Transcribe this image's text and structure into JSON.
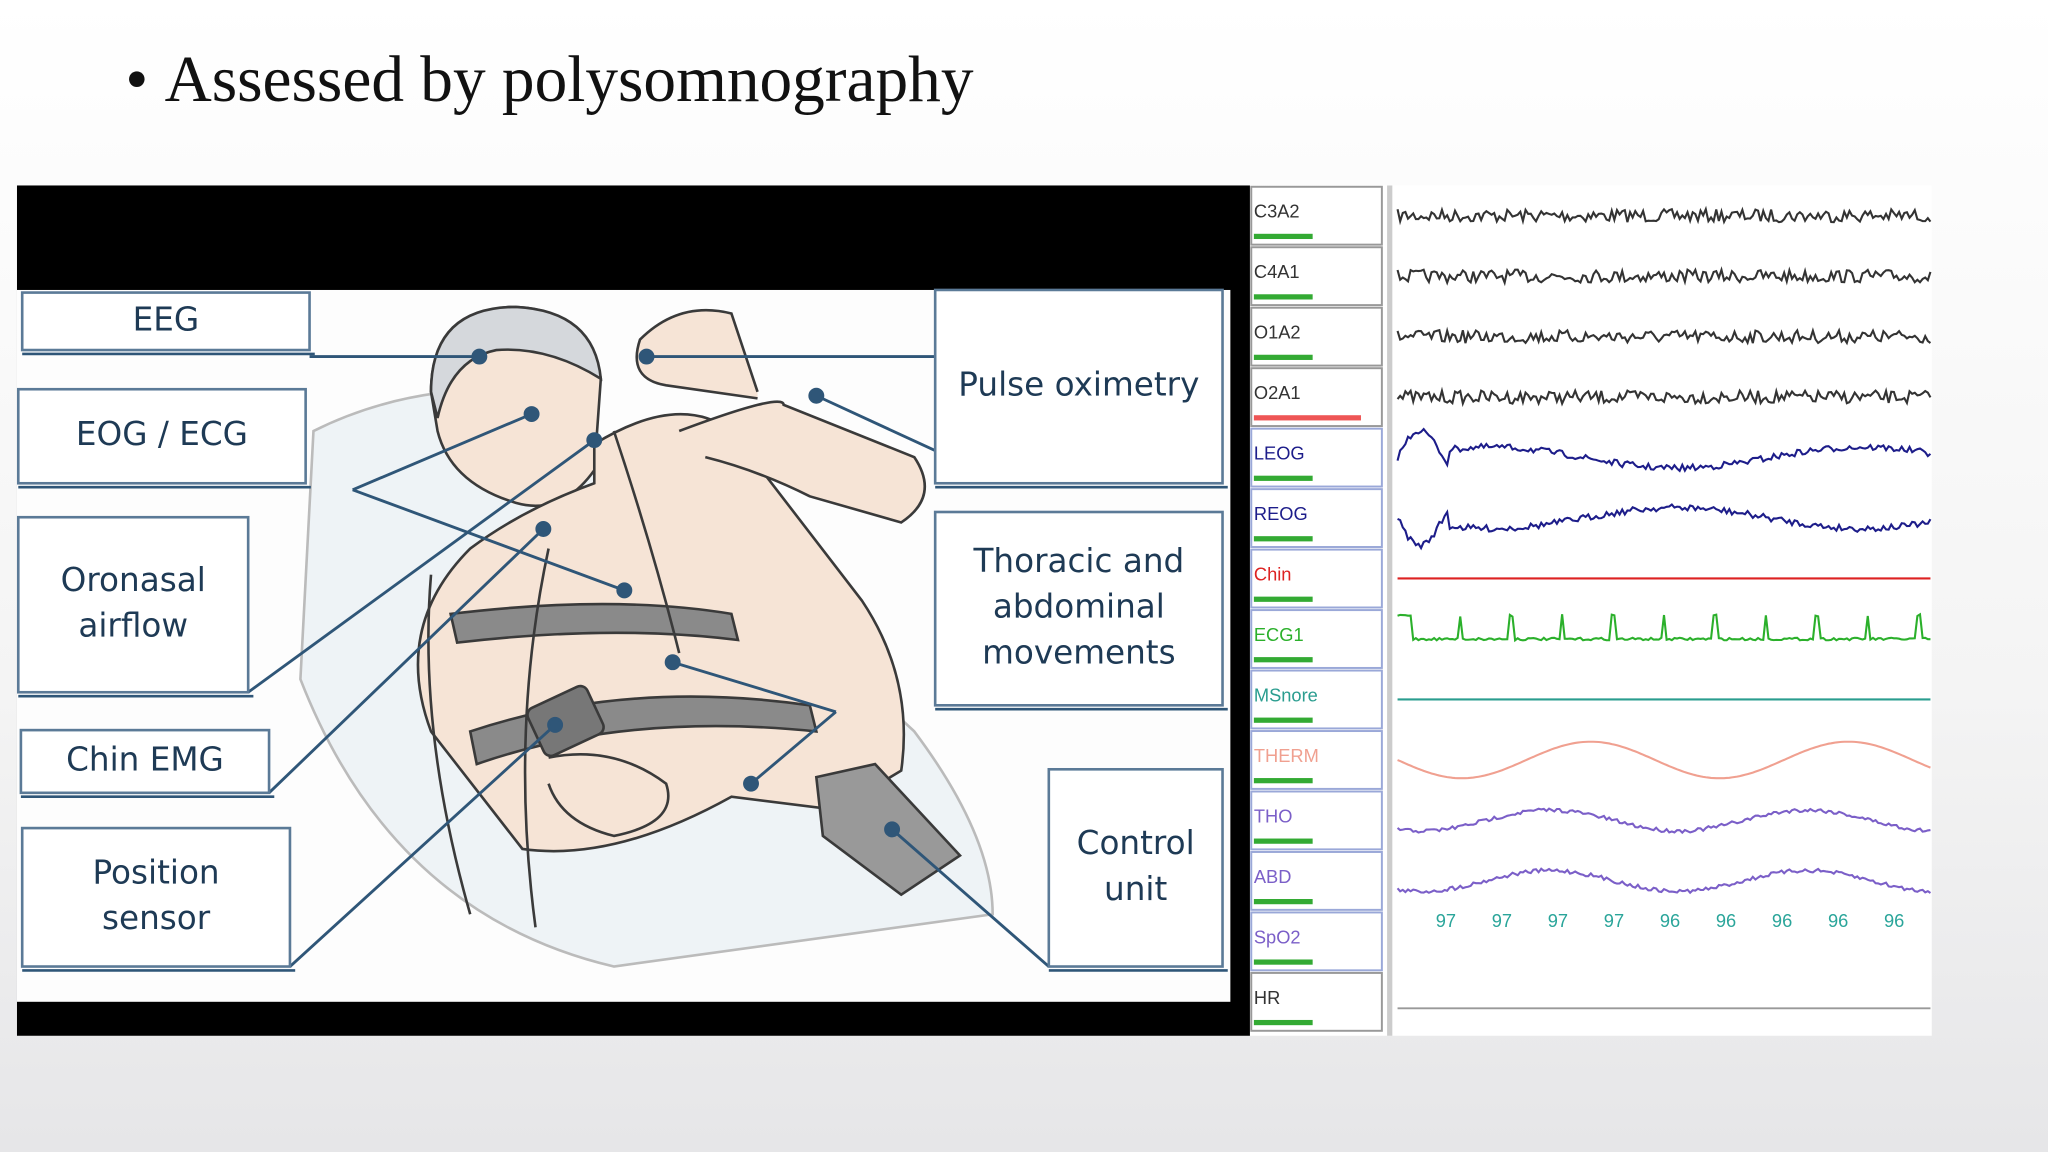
{
  "title": "Assessed by polysomnography",
  "illustration": {
    "labels": [
      {
        "lines": [
          "EEG"
        ]
      },
      {
        "lines": [
          "EOG / ECG"
        ]
      },
      {
        "lines": [
          "Oronasal",
          "airflow"
        ]
      },
      {
        "lines": [
          "Chin EMG"
        ]
      },
      {
        "lines": [
          "Position",
          "sensor"
        ]
      },
      {
        "lines": [
          "Pulse oximetry"
        ]
      },
      {
        "lines": [
          "Thoracic and",
          "abdominal",
          "movements"
        ]
      },
      {
        "lines": [
          "Control",
          "unit"
        ]
      }
    ]
  },
  "recording": {
    "channels": [
      "C3A2",
      "C4A1",
      "O1A2",
      "O2A1",
      "LEOG",
      "REOG",
      "Chin",
      "ECG1",
      "MSnore",
      "THERM",
      "THO",
      "ABD",
      "SpO2",
      "HR"
    ],
    "spo2_values": [
      97,
      97,
      97,
      97,
      96,
      96,
      96,
      96,
      96
    ]
  }
}
